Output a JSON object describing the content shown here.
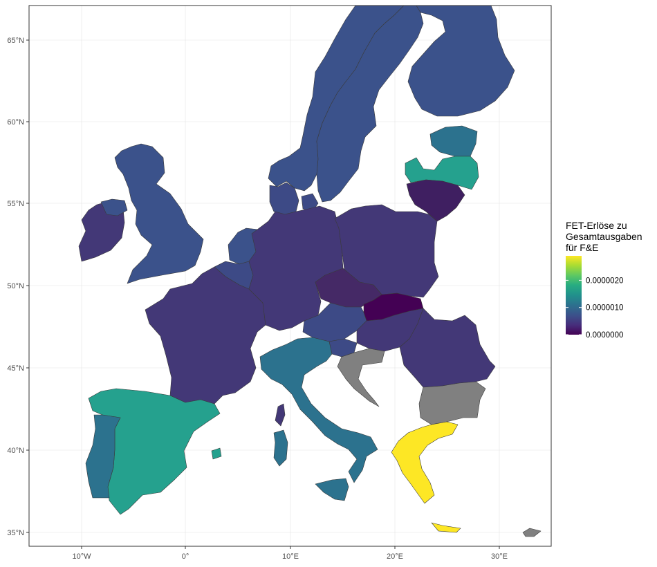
{
  "chart_data": {
    "type": "choropleth",
    "legend": {
      "title_lines": [
        "FET-Erlöse zu",
        "Gesamtausgaben",
        "für F&E"
      ],
      "ticks": [
        "0.0000000",
        "0.0000010",
        "0.0000020"
      ],
      "tick_values": [
        0.0,
        1e-06,
        2e-06
      ],
      "range": [
        0.0,
        2.9e-06
      ],
      "palette": "viridis",
      "placement": "right"
    },
    "axes": {
      "x_ticks": [
        "10°W",
        "0°",
        "10°E",
        "20°E",
        "30°E"
      ],
      "x_tick_values": [
        -10,
        0,
        10,
        20,
        30
      ],
      "y_ticks": [
        "65°N",
        "60°N",
        "55°N",
        "50°N",
        "45°N",
        "40°N",
        "35°N"
      ],
      "y_tick_values": [
        65,
        60,
        55,
        50,
        45,
        40,
        35
      ],
      "lon_range": [
        -15,
        35
      ],
      "lat_range": [
        34,
        67
      ],
      "grid": true
    },
    "no_data_color": "#808080",
    "colors": {
      "viridis_low": "#440154",
      "viridis_mid": "#21908C",
      "viridis_high": "#FDE725",
      "panel_border": "#333333",
      "grid": "#ebebeb"
    },
    "regions": [
      {
        "id": "norway",
        "color": "#3b528b"
      },
      {
        "id": "sweden",
        "color": "#3b528b"
      },
      {
        "id": "finland",
        "color": "#3b528b"
      },
      {
        "id": "estonia",
        "color": "#2c728e"
      },
      {
        "id": "latvia",
        "color": "#25a18e"
      },
      {
        "id": "lithuania",
        "color": "#3f1f61"
      },
      {
        "id": "ireland",
        "color": "#433877"
      },
      {
        "id": "uk",
        "color": "#3b528b"
      },
      {
        "id": "denmark",
        "color": "#3d4a86"
      },
      {
        "id": "netherlands",
        "color": "#3b528b"
      },
      {
        "id": "belgium",
        "color": "#3d4a86"
      },
      {
        "id": "france",
        "color": "#433877"
      },
      {
        "id": "germany",
        "color": "#433877"
      },
      {
        "id": "poland",
        "color": "#433877"
      },
      {
        "id": "czechia",
        "color": "#452966"
      },
      {
        "id": "slovakia",
        "color": "#440154"
      },
      {
        "id": "austria",
        "color": "#3d4a86"
      },
      {
        "id": "hungary",
        "color": "#433877"
      },
      {
        "id": "romania",
        "color": "#433877"
      },
      {
        "id": "bulgaria",
        "color": "#808080"
      },
      {
        "id": "croatia",
        "color": "#808080"
      },
      {
        "id": "slovenia",
        "color": "#3d4a86"
      },
      {
        "id": "italy",
        "color": "#2c728e"
      },
      {
        "id": "sardinia",
        "color": "#2c728e"
      },
      {
        "id": "sicily",
        "color": "#2c728e"
      },
      {
        "id": "corsica",
        "color": "#433877"
      },
      {
        "id": "spain",
        "color": "#25a18e"
      },
      {
        "id": "balearics",
        "color": "#25a18e"
      },
      {
        "id": "portugal",
        "color": "#2c728e"
      },
      {
        "id": "greece",
        "color": "#fde725"
      },
      {
        "id": "crete",
        "color": "#fde725"
      },
      {
        "id": "cyprus",
        "color": "#808080"
      }
    ]
  }
}
